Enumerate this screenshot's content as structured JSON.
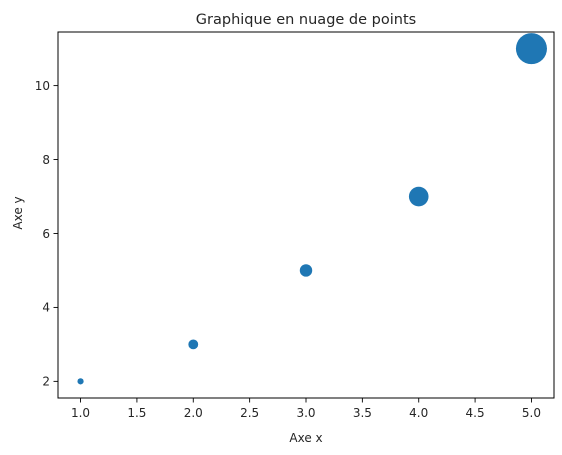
{
  "chart_data": {
    "type": "scatter",
    "title": "Graphique en nuage de points",
    "xlabel": "Axe x",
    "ylabel": "Axe y",
    "x": [
      1,
      2,
      3,
      4,
      5
    ],
    "y": [
      2,
      3,
      5,
      7,
      11
    ],
    "sizes": [
      20,
      50,
      80,
      200,
      500
    ],
    "xlim": [
      0.8,
      5.2
    ],
    "ylim": [
      1.55,
      11.45
    ],
    "xticks": [
      "1.0",
      "1.5",
      "2.0",
      "2.5",
      "3.0",
      "3.5",
      "4.0",
      "4.5",
      "5.0"
    ],
    "yticks": [
      "2",
      "4",
      "6",
      "8",
      "10"
    ],
    "grid": false,
    "legend": "none",
    "color": "#1f77b4"
  }
}
